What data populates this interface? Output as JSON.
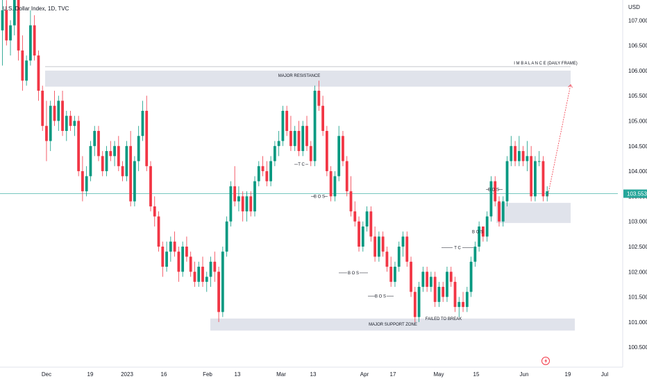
{
  "header": {
    "symbol_line": "U.S. Dollar Index, 1D, TVC"
  },
  "axis": {
    "currency": "USD",
    "current_price": "103.553"
  },
  "colors": {
    "up": "#089981",
    "down": "#f23645",
    "zone": "#e0e3eb",
    "price_line": "#26a69a",
    "projection": "#f23645",
    "axis_text": "#131722"
  },
  "chart_data": {
    "type": "candlestick",
    "title": "U.S. Dollar Index, 1D, TVC",
    "ylabel": "USD",
    "ylim": [
      100.1,
      107.4
    ],
    "y_ticks": [
      "107.000",
      "106.500",
      "106.000",
      "105.500",
      "105.000",
      "104.500",
      "104.000",
      "103.500",
      "103.000",
      "102.500",
      "102.000",
      "101.500",
      "101.000",
      "100.500"
    ],
    "x_ticks": [
      "Dec",
      "19",
      "2023",
      "16",
      "Feb",
      "13",
      "Mar",
      "13",
      "Apr",
      "17",
      "May",
      "15",
      "Jun",
      "19",
      "Jul"
    ],
    "last_price": 103.553,
    "series": [
      {
        "name": "candles",
        "values": [
          {
            "o": 106.8,
            "h": 107.6,
            "l": 106.1,
            "c": 107.2
          },
          {
            "o": 107.2,
            "h": 107.4,
            "l": 106.5,
            "c": 106.6
          },
          {
            "o": 106.6,
            "h": 107.0,
            "l": 106.3,
            "c": 106.9
          },
          {
            "o": 106.9,
            "h": 107.7,
            "l": 106.7,
            "c": 107.5
          },
          {
            "o": 107.5,
            "h": 107.6,
            "l": 106.2,
            "c": 106.4
          },
          {
            "o": 106.4,
            "h": 106.7,
            "l": 105.6,
            "c": 105.8
          },
          {
            "o": 105.8,
            "h": 106.3,
            "l": 105.7,
            "c": 106.2
          },
          {
            "o": 106.2,
            "h": 107.2,
            "l": 106.1,
            "c": 106.9
          },
          {
            "o": 106.9,
            "h": 107.1,
            "l": 106.2,
            "c": 106.3
          },
          {
            "o": 106.3,
            "h": 106.4,
            "l": 105.4,
            "c": 105.6
          },
          {
            "o": 105.6,
            "h": 105.7,
            "l": 104.8,
            "c": 104.9
          },
          {
            "o": 104.9,
            "h": 105.4,
            "l": 104.2,
            "c": 104.6
          },
          {
            "o": 104.6,
            "h": 105.4,
            "l": 104.4,
            "c": 105.3
          },
          {
            "o": 105.3,
            "h": 105.6,
            "l": 104.9,
            "c": 105.0
          },
          {
            "o": 105.0,
            "h": 105.5,
            "l": 104.8,
            "c": 105.4
          },
          {
            "o": 105.4,
            "h": 105.6,
            "l": 104.7,
            "c": 104.8
          },
          {
            "o": 104.8,
            "h": 105.2,
            "l": 104.6,
            "c": 105.1
          },
          {
            "o": 105.1,
            "h": 105.2,
            "l": 104.8,
            "c": 104.9
          },
          {
            "o": 104.9,
            "h": 105.1,
            "l": 104.7,
            "c": 105.0
          },
          {
            "o": 105.0,
            "h": 105.1,
            "l": 103.9,
            "c": 104.0
          },
          {
            "o": 104.0,
            "h": 104.3,
            "l": 103.4,
            "c": 103.6
          },
          {
            "o": 103.6,
            "h": 104.1,
            "l": 103.5,
            "c": 103.9
          },
          {
            "o": 103.9,
            "h": 104.6,
            "l": 103.8,
            "c": 104.5
          },
          {
            "o": 104.5,
            "h": 104.9,
            "l": 104.3,
            "c": 104.8
          },
          {
            "o": 104.8,
            "h": 104.9,
            "l": 104.2,
            "c": 104.3
          },
          {
            "o": 104.3,
            "h": 104.4,
            "l": 103.9,
            "c": 104.0
          },
          {
            "o": 104.0,
            "h": 104.5,
            "l": 103.9,
            "c": 104.4
          },
          {
            "o": 104.4,
            "h": 104.6,
            "l": 104.2,
            "c": 104.3
          },
          {
            "o": 104.3,
            "h": 104.6,
            "l": 104.1,
            "c": 104.5
          },
          {
            "o": 104.5,
            "h": 104.7,
            "l": 104.0,
            "c": 104.1
          },
          {
            "o": 104.1,
            "h": 104.2,
            "l": 103.8,
            "c": 103.9
          },
          {
            "o": 103.9,
            "h": 104.6,
            "l": 103.8,
            "c": 104.5
          },
          {
            "o": 104.5,
            "h": 104.8,
            "l": 103.3,
            "c": 103.4
          },
          {
            "o": 103.4,
            "h": 104.3,
            "l": 103.3,
            "c": 104.2
          },
          {
            "o": 104.2,
            "h": 104.9,
            "l": 104.0,
            "c": 104.7
          },
          {
            "o": 104.7,
            "h": 105.4,
            "l": 104.6,
            "c": 105.2
          },
          {
            "o": 105.2,
            "h": 105.5,
            "l": 104.0,
            "c": 104.1
          },
          {
            "o": 104.1,
            "h": 104.2,
            "l": 103.2,
            "c": 103.3
          },
          {
            "o": 103.3,
            "h": 103.5,
            "l": 102.9,
            "c": 103.1
          },
          {
            "o": 103.1,
            "h": 103.2,
            "l": 102.4,
            "c": 102.5
          },
          {
            "o": 102.5,
            "h": 102.6,
            "l": 101.9,
            "c": 102.1
          },
          {
            "o": 102.1,
            "h": 102.6,
            "l": 102.0,
            "c": 102.4
          },
          {
            "o": 102.4,
            "h": 102.7,
            "l": 102.2,
            "c": 102.6
          },
          {
            "o": 102.6,
            "h": 102.8,
            "l": 102.3,
            "c": 102.4
          },
          {
            "o": 102.4,
            "h": 102.5,
            "l": 101.8,
            "c": 102.0
          },
          {
            "o": 102.0,
            "h": 102.6,
            "l": 101.9,
            "c": 102.5
          },
          {
            "o": 102.5,
            "h": 102.7,
            "l": 102.2,
            "c": 102.3
          },
          {
            "o": 102.3,
            "h": 102.4,
            "l": 101.9,
            "c": 102.0
          },
          {
            "o": 102.0,
            "h": 102.2,
            "l": 101.7,
            "c": 101.8
          },
          {
            "o": 101.8,
            "h": 102.2,
            "l": 101.7,
            "c": 102.1
          },
          {
            "o": 102.1,
            "h": 102.3,
            "l": 101.7,
            "c": 101.8
          },
          {
            "o": 101.8,
            "h": 102.0,
            "l": 101.6,
            "c": 101.9
          },
          {
            "o": 101.9,
            "h": 102.3,
            "l": 101.7,
            "c": 102.2
          },
          {
            "o": 102.2,
            "h": 102.4,
            "l": 101.8,
            "c": 102.0
          },
          {
            "o": 102.0,
            "h": 102.1,
            "l": 101.0,
            "c": 101.2
          },
          {
            "o": 101.2,
            "h": 102.5,
            "l": 101.1,
            "c": 102.4
          },
          {
            "o": 102.4,
            "h": 103.1,
            "l": 102.3,
            "c": 103.0
          },
          {
            "o": 103.0,
            "h": 103.8,
            "l": 102.9,
            "c": 103.7
          },
          {
            "o": 103.7,
            "h": 104.1,
            "l": 103.3,
            "c": 103.4
          },
          {
            "o": 103.4,
            "h": 103.7,
            "l": 103.2,
            "c": 103.5
          },
          {
            "o": 103.5,
            "h": 103.6,
            "l": 103.0,
            "c": 103.2
          },
          {
            "o": 103.2,
            "h": 103.6,
            "l": 103.0,
            "c": 103.5
          },
          {
            "o": 103.5,
            "h": 103.6,
            "l": 103.1,
            "c": 103.2
          },
          {
            "o": 103.2,
            "h": 103.9,
            "l": 103.1,
            "c": 103.8
          },
          {
            "o": 103.8,
            "h": 104.2,
            "l": 103.7,
            "c": 104.1
          },
          {
            "o": 104.1,
            "h": 104.3,
            "l": 103.9,
            "c": 104.0
          },
          {
            "o": 104.0,
            "h": 104.2,
            "l": 103.7,
            "c": 103.8
          },
          {
            "o": 103.8,
            "h": 104.3,
            "l": 103.7,
            "c": 104.2
          },
          {
            "o": 104.2,
            "h": 104.6,
            "l": 104.1,
            "c": 104.5
          },
          {
            "o": 104.5,
            "h": 104.8,
            "l": 104.3,
            "c": 104.6
          },
          {
            "o": 104.6,
            "h": 105.3,
            "l": 104.5,
            "c": 105.2
          },
          {
            "o": 105.2,
            "h": 105.3,
            "l": 104.7,
            "c": 104.8
          },
          {
            "o": 104.8,
            "h": 105.1,
            "l": 104.4,
            "c": 104.5
          },
          {
            "o": 104.5,
            "h": 104.9,
            "l": 104.4,
            "c": 104.8
          },
          {
            "o": 104.8,
            "h": 105.0,
            "l": 104.3,
            "c": 104.4
          },
          {
            "o": 104.4,
            "h": 105.0,
            "l": 104.3,
            "c": 104.9
          },
          {
            "o": 104.9,
            "h": 105.1,
            "l": 104.4,
            "c": 104.5
          },
          {
            "o": 104.5,
            "h": 104.6,
            "l": 104.1,
            "c": 104.2
          },
          {
            "o": 104.2,
            "h": 105.7,
            "l": 104.1,
            "c": 105.6
          },
          {
            "o": 105.6,
            "h": 105.8,
            "l": 105.2,
            "c": 105.3
          },
          {
            "o": 105.3,
            "h": 105.5,
            "l": 104.7,
            "c": 104.8
          },
          {
            "o": 104.8,
            "h": 104.9,
            "l": 103.9,
            "c": 104.0
          },
          {
            "o": 104.0,
            "h": 104.1,
            "l": 103.4,
            "c": 103.5
          },
          {
            "o": 103.5,
            "h": 104.0,
            "l": 103.4,
            "c": 103.9
          },
          {
            "o": 103.9,
            "h": 104.9,
            "l": 103.8,
            "c": 104.7
          },
          {
            "o": 104.7,
            "h": 104.8,
            "l": 104.1,
            "c": 104.2
          },
          {
            "o": 104.2,
            "h": 104.3,
            "l": 103.5,
            "c": 103.6
          },
          {
            "o": 103.6,
            "h": 103.9,
            "l": 103.1,
            "c": 103.2
          },
          {
            "o": 103.2,
            "h": 103.4,
            "l": 102.9,
            "c": 103.0
          },
          {
            "o": 103.0,
            "h": 103.1,
            "l": 102.4,
            "c": 102.5
          },
          {
            "o": 102.5,
            "h": 103.0,
            "l": 102.4,
            "c": 102.9
          },
          {
            "o": 102.9,
            "h": 103.3,
            "l": 102.8,
            "c": 103.2
          },
          {
            "o": 103.2,
            "h": 103.3,
            "l": 102.6,
            "c": 102.7
          },
          {
            "o": 102.7,
            "h": 102.9,
            "l": 102.2,
            "c": 102.3
          },
          {
            "o": 102.3,
            "h": 102.8,
            "l": 102.2,
            "c": 102.7
          },
          {
            "o": 102.7,
            "h": 102.8,
            "l": 102.3,
            "c": 102.4
          },
          {
            "o": 102.4,
            "h": 102.5,
            "l": 102.0,
            "c": 102.1
          },
          {
            "o": 102.1,
            "h": 102.3,
            "l": 101.7,
            "c": 101.8
          },
          {
            "o": 101.8,
            "h": 102.2,
            "l": 101.7,
            "c": 102.1
          },
          {
            "o": 102.1,
            "h": 102.6,
            "l": 102.0,
            "c": 102.5
          },
          {
            "o": 102.5,
            "h": 102.8,
            "l": 102.3,
            "c": 102.7
          },
          {
            "o": 102.7,
            "h": 102.8,
            "l": 102.1,
            "c": 102.2
          },
          {
            "o": 102.2,
            "h": 102.3,
            "l": 101.5,
            "c": 101.6
          },
          {
            "o": 101.6,
            "h": 101.7,
            "l": 101.0,
            "c": 101.1
          },
          {
            "o": 101.1,
            "h": 101.8,
            "l": 101.0,
            "c": 101.7
          },
          {
            "o": 101.7,
            "h": 102.1,
            "l": 101.6,
            "c": 102.0
          },
          {
            "o": 102.0,
            "h": 102.1,
            "l": 101.6,
            "c": 101.7
          },
          {
            "o": 101.7,
            "h": 102.0,
            "l": 101.6,
            "c": 101.9
          },
          {
            "o": 101.9,
            "h": 102.0,
            "l": 101.3,
            "c": 101.4
          },
          {
            "o": 101.4,
            "h": 101.8,
            "l": 101.3,
            "c": 101.7
          },
          {
            "o": 101.7,
            "h": 101.8,
            "l": 101.4,
            "c": 101.5
          },
          {
            "o": 101.5,
            "h": 102.1,
            "l": 101.4,
            "c": 102.0
          },
          {
            "o": 102.0,
            "h": 102.1,
            "l": 101.7,
            "c": 101.8
          },
          {
            "o": 101.8,
            "h": 101.9,
            "l": 101.2,
            "c": 101.3
          },
          {
            "o": 101.3,
            "h": 101.5,
            "l": 101.1,
            "c": 101.4
          },
          {
            "o": 101.4,
            "h": 101.6,
            "l": 101.2,
            "c": 101.3
          },
          {
            "o": 101.3,
            "h": 101.7,
            "l": 101.2,
            "c": 101.6
          },
          {
            "o": 101.6,
            "h": 102.3,
            "l": 101.5,
            "c": 102.2
          },
          {
            "o": 102.2,
            "h": 102.6,
            "l": 102.1,
            "c": 102.5
          },
          {
            "o": 102.5,
            "h": 103.0,
            "l": 102.4,
            "c": 102.9
          },
          {
            "o": 102.9,
            "h": 102.8,
            "l": 102.6,
            "c": 102.7
          },
          {
            "o": 102.7,
            "h": 103.2,
            "l": 102.6,
            "c": 103.1
          },
          {
            "o": 103.1,
            "h": 103.9,
            "l": 103.0,
            "c": 103.8
          },
          {
            "o": 103.8,
            "h": 103.9,
            "l": 103.3,
            "c": 103.4
          },
          {
            "o": 103.4,
            "h": 103.5,
            "l": 102.9,
            "c": 103.0
          },
          {
            "o": 103.0,
            "h": 103.5,
            "l": 102.9,
            "c": 103.4
          },
          {
            "o": 103.4,
            "h": 104.3,
            "l": 103.3,
            "c": 104.2
          },
          {
            "o": 104.2,
            "h": 104.7,
            "l": 104.1,
            "c": 104.5
          },
          {
            "o": 104.5,
            "h": 104.6,
            "l": 104.1,
            "c": 104.2
          },
          {
            "o": 104.2,
            "h": 104.7,
            "l": 104.1,
            "c": 104.4
          },
          {
            "o": 104.4,
            "h": 104.5,
            "l": 104.1,
            "c": 104.2
          },
          {
            "o": 104.2,
            "h": 104.6,
            "l": 104.0,
            "c": 104.3
          },
          {
            "o": 104.3,
            "h": 104.5,
            "l": 103.4,
            "c": 103.5
          },
          {
            "o": 103.5,
            "h": 104.3,
            "l": 103.4,
            "c": 104.2
          },
          {
            "o": 104.2,
            "h": 104.4,
            "l": 104.1,
            "c": 104.2
          },
          {
            "o": 104.2,
            "h": 104.3,
            "l": 103.4,
            "c": 103.5
          },
          {
            "o": 103.5,
            "h": 103.7,
            "l": 103.4,
            "c": 103.6
          }
        ]
      }
    ],
    "zones": [
      {
        "label": "MAJOR RESISTANCE",
        "from": 105.68,
        "to": 106.0
      },
      {
        "label": "I M B A L A N C E (DAILY FRAME)",
        "level": 106.08
      },
      {
        "label": "MAJOR SUPPORT ZONE",
        "from": 100.83,
        "to": 101.07
      },
      {
        "label": "",
        "from": 102.97,
        "to": 103.37
      }
    ],
    "annotations": [
      {
        "label": "T C",
        "price": 104.11
      },
      {
        "label": "B O S",
        "price": 103.47
      },
      {
        "label": "B O S",
        "price": 101.95
      },
      {
        "label": "B O S",
        "price": 101.49
      },
      {
        "label": "FAILED TO BREAK",
        "price": 101.04
      },
      {
        "label": "T C",
        "price": 102.45
      },
      {
        "label": "B O S",
        "price": 102.77
      },
      {
        "label": "B O S",
        "price": 103.61
      }
    ]
  }
}
